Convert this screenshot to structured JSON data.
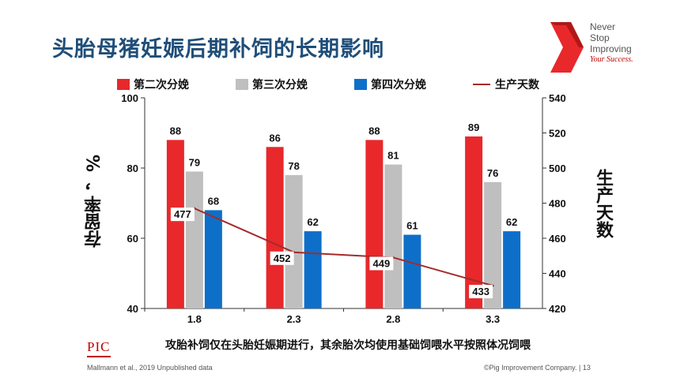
{
  "slide": {
    "title": "头胎母猪妊娠后期补饲的长期影响",
    "brand": {
      "line1": "Never",
      "line2": "Stop",
      "line3": "Improving",
      "tagline": "Your Success."
    },
    "logo": "PIC",
    "source": "Mallmann et al., 2019 Unpublished data",
    "copyright": "©Pig Improvement Company.  |  13"
  },
  "colors": {
    "series1": "#e8282b",
    "series2": "#bfbfbf",
    "series3": "#0e6fc9",
    "line": "#a52a2a",
    "title": "#1f4e79",
    "brand_red": "#c00000"
  },
  "chart_data": {
    "type": "bar",
    "categories": [
      "1.8",
      "2.3",
      "2.8",
      "3.3"
    ],
    "xlabel": "攻胎补饲仅在头胎妊娠期进行，其余胎次均使用基础饲喂水平按照体况饲喂",
    "ylabel": "存留率 ，%",
    "y2label": "生产天数",
    "ylim": [
      40,
      100
    ],
    "y2lim": [
      420,
      540
    ],
    "yticks": [
      40,
      60,
      80,
      100
    ],
    "y2ticks": [
      420,
      440,
      460,
      480,
      500,
      520,
      540
    ],
    "legend_position": "top",
    "grid": false,
    "series": [
      {
        "name": "第二次分娩",
        "type": "bar",
        "axis": "left",
        "values": [
          88,
          86,
          88,
          89
        ]
      },
      {
        "name": "第三次分娩",
        "type": "bar",
        "axis": "left",
        "values": [
          79,
          78,
          81,
          76
        ]
      },
      {
        "name": "第四次分娩",
        "type": "bar",
        "axis": "left",
        "values": [
          68,
          62,
          61,
          62
        ]
      },
      {
        "name": "生产天数",
        "type": "line",
        "axis": "right",
        "values": [
          477,
          452,
          449,
          433
        ]
      }
    ]
  }
}
